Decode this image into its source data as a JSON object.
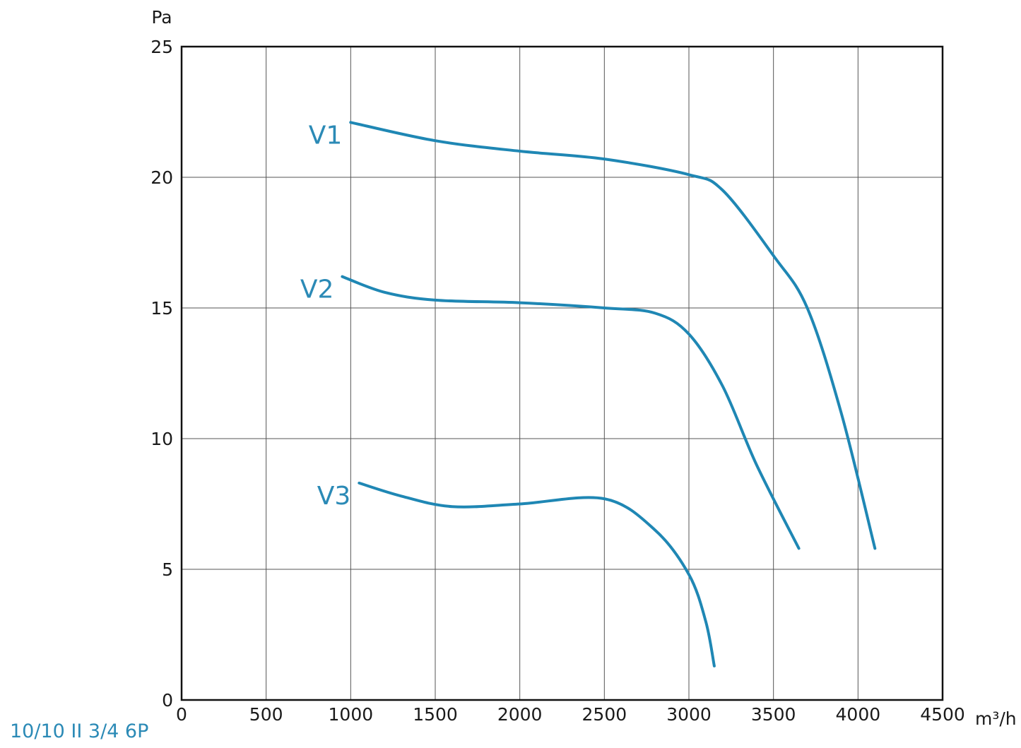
{
  "chart_data": {
    "type": "line",
    "title": "",
    "xlabel": "m³/h",
    "ylabel": "Pa",
    "xlim": [
      0,
      4500
    ],
    "ylim": [
      0,
      25
    ],
    "x_ticks": [
      0,
      500,
      1000,
      1500,
      2000,
      2500,
      3000,
      3500,
      4000,
      4500
    ],
    "y_ticks": [
      0,
      5,
      10,
      15,
      20,
      25
    ],
    "grid": true,
    "legend": "none",
    "model_label": "10/10 II 3/4 6P",
    "colors": {
      "series": "#1f87b4",
      "grid": "#555555",
      "frame": "#111111",
      "label": "#2b8ab6"
    },
    "series": [
      {
        "name": "V1",
        "points": [
          [
            1000,
            22.1
          ],
          [
            1500,
            21.4
          ],
          [
            2000,
            21.0
          ],
          [
            2500,
            20.7
          ],
          [
            3000,
            20.1
          ],
          [
            3200,
            19.5
          ],
          [
            3500,
            17.0
          ],
          [
            3700,
            15.0
          ],
          [
            3900,
            11.0
          ],
          [
            4100,
            5.8
          ]
        ]
      },
      {
        "name": "V2",
        "points": [
          [
            950,
            16.2
          ],
          [
            1200,
            15.6
          ],
          [
            1500,
            15.3
          ],
          [
            2000,
            15.2
          ],
          [
            2500,
            15.0
          ],
          [
            2800,
            14.8
          ],
          [
            3000,
            14.0
          ],
          [
            3200,
            12.0
          ],
          [
            3400,
            9.0
          ],
          [
            3650,
            5.8
          ]
        ]
      },
      {
        "name": "V3",
        "points": [
          [
            1050,
            8.3
          ],
          [
            1300,
            7.8
          ],
          [
            1600,
            7.4
          ],
          [
            2000,
            7.5
          ],
          [
            2500,
            7.7
          ],
          [
            2800,
            6.5
          ],
          [
            3000,
            4.8
          ],
          [
            3100,
            3.0
          ],
          [
            3150,
            1.3
          ]
        ]
      }
    ]
  }
}
